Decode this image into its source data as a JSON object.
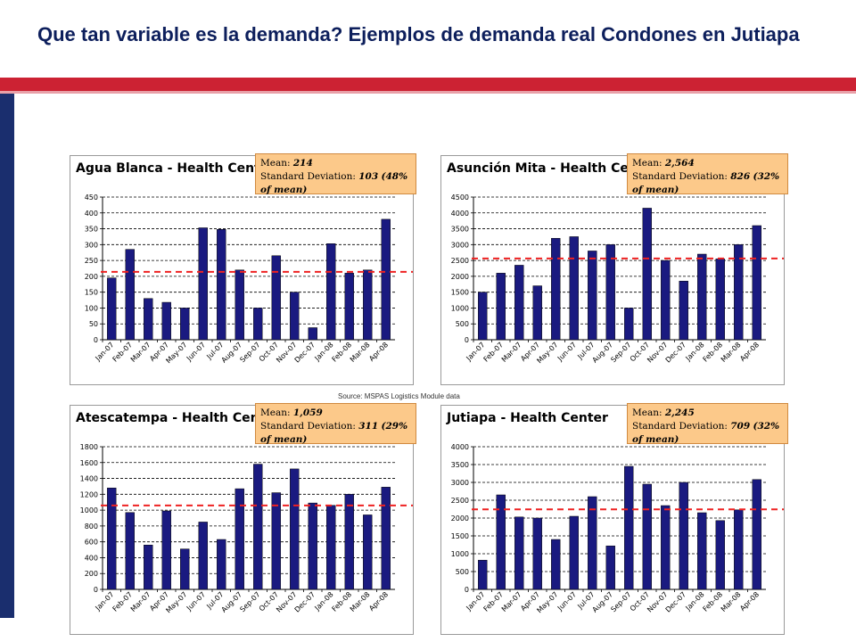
{
  "slide": {
    "title": "Que tan variable es la demanda?  Ejemplos de demanda real Condones en Jutiapa",
    "source": "Source:  MSPAS Logistics Module data"
  },
  "colors": {
    "bar": "#1a1a80",
    "mean_line": "#ee2222",
    "stats_fill": "#fcc98a",
    "accent_red": "#cc2233",
    "accent_navy": "#1a2e6e"
  },
  "chart_data": [
    {
      "type": "bar",
      "title": "Agua Blanca - Health Center",
      "stats": {
        "mean_label": "Mean:",
        "mean_value": "214",
        "sd_label": "Standard Deviation:",
        "sd_value": "103",
        "sd_note": "(48% of mean)"
      },
      "categories": [
        "Jan-07",
        "Feb-07",
        "Mar-07",
        "Apr-07",
        "May-07",
        "Jun-07",
        "Jul-07",
        "Aug-07",
        "Sep-07",
        "Oct-07",
        "Nov-07",
        "Dec-07",
        "Jan-08",
        "Feb-08",
        "Mar-08",
        "Apr-08"
      ],
      "values": [
        195,
        285,
        130,
        118,
        100,
        353,
        348,
        220,
        100,
        265,
        150,
        38,
        303,
        210,
        220,
        380
      ],
      "mean": 214,
      "ylim": [
        0,
        450
      ],
      "yticks": [
        0,
        50,
        100,
        150,
        200,
        250,
        300,
        350,
        400,
        450
      ],
      "grid": true
    },
    {
      "type": "bar",
      "title": "Asunción Mita - Health Center",
      "stats": {
        "mean_label": "Mean:",
        "mean_value": "2,564",
        "sd_label": "Standard Deviation:",
        "sd_value": "826",
        "sd_note": "(32% of mean)"
      },
      "categories": [
        "Jan-07",
        "Feb-07",
        "Mar-07",
        "Apr-07",
        "May-07",
        "Jun-07",
        "Jul-07",
        "Aug-07",
        "Sep-07",
        "Oct-07",
        "Nov-07",
        "Dec-07",
        "Jan-08",
        "Feb-08",
        "Mar-08",
        "Apr-08"
      ],
      "values": [
        1500,
        2100,
        2350,
        1700,
        3200,
        3250,
        2800,
        3000,
        1000,
        4150,
        2500,
        1850,
        2700,
        2550,
        3000,
        3600
      ],
      "mean": 2564,
      "ylim": [
        0,
        4500
      ],
      "yticks": [
        0,
        500,
        1000,
        1500,
        2000,
        2500,
        3000,
        3500,
        4000,
        4500
      ],
      "grid": true
    },
    {
      "type": "bar",
      "title": "Atescatempa - Health Center",
      "stats": {
        "mean_label": "Mean:",
        "mean_value": "1,059",
        "sd_label": "Standard Deviation:",
        "sd_value": "311",
        "sd_note": "(29% of mean)"
      },
      "categories": [
        "Jan-07",
        "Feb-07",
        "Mar-07",
        "Apr-07",
        "May-07",
        "Jun-07",
        "Jul-07",
        "Aug-07",
        "Sep-07",
        "Oct-07",
        "Nov-07",
        "Dec-07",
        "Jan-08",
        "Feb-08",
        "Mar-08",
        "Apr-08"
      ],
      "values": [
        1280,
        970,
        560,
        990,
        510,
        850,
        630,
        1270,
        1580,
        1220,
        1520,
        1090,
        1060,
        1200,
        940,
        1290
      ],
      "mean": 1059,
      "ylim": [
        0,
        1800
      ],
      "yticks": [
        0,
        200,
        400,
        600,
        800,
        1000,
        1200,
        1400,
        1600,
        1800
      ],
      "grid": true
    },
    {
      "type": "bar",
      "title": "Jutiapa - Health Center",
      "stats": {
        "mean_label": "Mean:",
        "mean_value": "2,245",
        "sd_label": "Standard Deviation:",
        "sd_value": "709",
        "sd_note": "(32% of mean)"
      },
      "categories": [
        "Jan-07",
        "Feb-07",
        "Mar-07",
        "Apr-07",
        "May-07",
        "Jun-07",
        "Jul-07",
        "Aug-07",
        "Sep-07",
        "Oct-07",
        "Nov-07",
        "Dec-07",
        "Jan-08",
        "Feb-08",
        "Mar-08",
        "Apr-08"
      ],
      "values": [
        820,
        2650,
        2030,
        2000,
        1400,
        2050,
        2600,
        1220,
        3450,
        2950,
        2350,
        3000,
        2150,
        1930,
        2230,
        3080
      ],
      "mean": 2245,
      "ylim": [
        0,
        4000
      ],
      "yticks": [
        0,
        500,
        1000,
        1500,
        2000,
        2500,
        3000,
        3500,
        4000
      ],
      "grid": true
    }
  ]
}
